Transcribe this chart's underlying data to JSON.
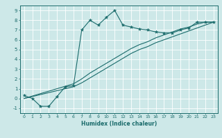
{
  "title": "",
  "xlabel": "Humidex (Indice chaleur)",
  "xlim": [
    -0.5,
    23.5
  ],
  "ylim": [
    -1.5,
    9.5
  ],
  "xticks": [
    0,
    1,
    2,
    3,
    4,
    5,
    6,
    7,
    8,
    9,
    10,
    11,
    12,
    13,
    14,
    15,
    16,
    17,
    18,
    19,
    20,
    21,
    22,
    23
  ],
  "yticks": [
    -1,
    0,
    1,
    2,
    3,
    4,
    5,
    6,
    7,
    8,
    9
  ],
  "bg_color": "#cde8e8",
  "line_color": "#1a6b6b",
  "grid_color": "#ffffff",
  "line1_x": [
    0,
    1,
    2,
    3,
    4,
    5,
    6,
    7,
    8,
    9,
    10,
    11,
    12,
    13,
    14,
    15,
    16,
    17,
    18,
    19,
    20,
    21,
    22,
    23
  ],
  "line1_y": [
    0.3,
    0.0,
    -0.8,
    -0.8,
    0.2,
    1.2,
    1.3,
    7.0,
    8.0,
    7.5,
    8.3,
    9.0,
    7.5,
    7.3,
    7.1,
    7.0,
    6.8,
    6.7,
    6.7,
    7.0,
    7.2,
    7.8,
    7.8,
    7.8
  ],
  "line2_x": [
    0,
    6,
    7,
    8,
    9,
    10,
    11,
    12,
    13,
    14,
    15,
    16,
    17,
    18,
    19,
    20,
    21,
    22,
    23
  ],
  "line2_y": [
    0.0,
    1.5,
    2.0,
    2.6,
    3.1,
    3.6,
    4.1,
    4.6,
    5.1,
    5.5,
    5.8,
    6.2,
    6.5,
    6.8,
    7.1,
    7.3,
    7.6,
    7.8,
    7.8
  ],
  "line3_x": [
    0,
    6,
    7,
    8,
    9,
    10,
    11,
    12,
    13,
    14,
    15,
    16,
    17,
    18,
    19,
    20,
    21,
    22,
    23
  ],
  "line3_y": [
    0.0,
    1.2,
    1.6,
    2.1,
    2.6,
    3.1,
    3.6,
    4.1,
    4.6,
    5.0,
    5.3,
    5.7,
    6.0,
    6.3,
    6.6,
    6.9,
    7.2,
    7.5,
    7.8
  ]
}
